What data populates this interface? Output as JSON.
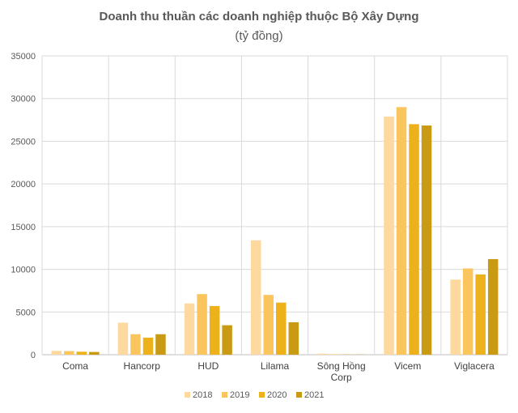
{
  "chart_data": {
    "type": "bar",
    "title": "Doanh thu thuần các doanh nghiệp thuộc Bộ Xây Dựng",
    "subtitle": "(tỷ đồng)",
    "xlabel": "",
    "ylabel": "",
    "ylim": [
      0,
      35000
    ],
    "yticks": [
      0,
      5000,
      10000,
      15000,
      20000,
      25000,
      30000,
      35000
    ],
    "grid": true,
    "legend_position": "bottom",
    "categories": [
      [
        "Coma"
      ],
      [
        "Hancorp"
      ],
      [
        "HUD"
      ],
      [
        "Lilama"
      ],
      [
        "Sông Hồng",
        "Corp"
      ],
      [
        "Vicem"
      ],
      [
        "Viglacera"
      ]
    ],
    "series": [
      {
        "name": "2018",
        "color": "#FDD9A0",
        "values": [
          450,
          3750,
          6000,
          13400,
          120,
          27900,
          8800
        ]
      },
      {
        "name": "2019",
        "color": "#FBC55E",
        "values": [
          420,
          2400,
          7100,
          7000,
          50,
          29000,
          10100
        ]
      },
      {
        "name": "2020",
        "color": "#EDB11C",
        "values": [
          350,
          2000,
          5700,
          6100,
          30,
          27000,
          9400
        ]
      },
      {
        "name": "2021",
        "color": "#C99A14",
        "values": [
          320,
          2400,
          3450,
          3800,
          20,
          26850,
          11200
        ]
      }
    ]
  }
}
